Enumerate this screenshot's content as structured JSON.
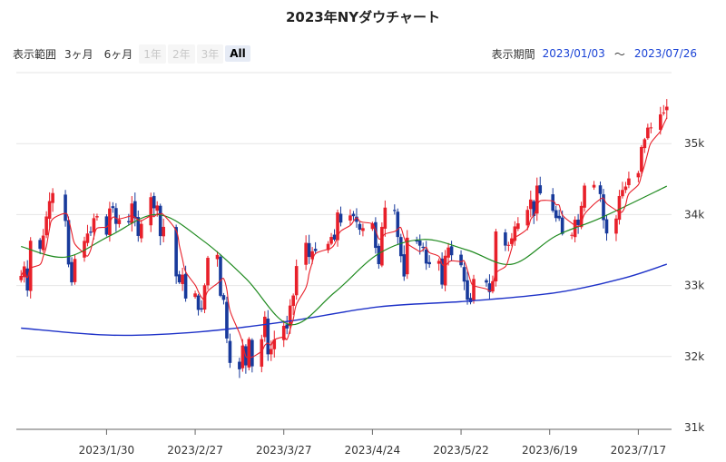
{
  "title": "2023年NYダウチャート",
  "range_selector": {
    "label": "表示範囲",
    "buttons": [
      {
        "label": "3ヶ月",
        "state": "enabled"
      },
      {
        "label": "6ヶ月",
        "state": "enabled"
      },
      {
        "label": "1年",
        "state": "disabled"
      },
      {
        "label": "2年",
        "state": "disabled"
      },
      {
        "label": "3年",
        "state": "disabled"
      },
      {
        "label": "All",
        "state": "active"
      }
    ]
  },
  "period": {
    "label": "表示期間",
    "from": "2023/01/03",
    "separator": "〜",
    "to": "2023/07/26"
  },
  "colors": {
    "up": "#e8202a",
    "down": "#183a9b",
    "ma_short": "#e8202a",
    "ma_mid": "#1f8a1f",
    "ma_long": "#1e32c8",
    "grid": "#e6e6e6"
  },
  "chart_data": {
    "type": "candlestick",
    "x_start": "2023-01-03",
    "x_end": "2023-07-26",
    "xticks": [
      {
        "date": "2023-01-30",
        "label": "2023/1/30"
      },
      {
        "date": "2023-02-27",
        "label": "2023/2/27"
      },
      {
        "date": "2023-03-27",
        "label": "2023/3/27"
      },
      {
        "date": "2023-04-24",
        "label": "2023/4/24"
      },
      {
        "date": "2023-05-22",
        "label": "2023/5/22"
      },
      {
        "date": "2023-06-19",
        "label": "2023/6/19"
      },
      {
        "date": "2023-07-17",
        "label": "2023/7/17"
      }
    ],
    "yticks": [
      {
        "value": 31000,
        "label": "31k"
      },
      {
        "value": 32000,
        "label": "32k"
      },
      {
        "value": 33000,
        "label": "33k"
      },
      {
        "value": 34000,
        "label": "34k"
      },
      {
        "value": 35000,
        "label": "35k"
      }
    ],
    "ylim": [
      31000,
      36000
    ],
    "closes": [
      [
        "2023-01-03",
        33136
      ],
      [
        "2023-01-04",
        33270
      ],
      [
        "2023-01-05",
        32930
      ],
      [
        "2023-01-06",
        33631
      ],
      [
        "2023-01-09",
        33517
      ],
      [
        "2023-01-10",
        33704
      ],
      [
        "2023-01-11",
        33973
      ],
      [
        "2023-01-12",
        34190
      ],
      [
        "2023-01-13",
        34303
      ],
      [
        "2023-01-17",
        33910
      ],
      [
        "2023-01-18",
        33297
      ],
      [
        "2023-01-19",
        33045
      ],
      [
        "2023-01-20",
        33375
      ],
      [
        "2023-01-23",
        33629
      ],
      [
        "2023-01-24",
        33733
      ],
      [
        "2023-01-25",
        33744
      ],
      [
        "2023-01-26",
        33949
      ],
      [
        "2023-01-27",
        33978
      ],
      [
        "2023-01-30",
        33717
      ],
      [
        "2023-01-31",
        34086
      ],
      [
        "2023-02-01",
        34092
      ],
      [
        "2023-02-02",
        33869
      ],
      [
        "2023-02-03",
        33926
      ],
      [
        "2023-02-06",
        33891
      ],
      [
        "2023-02-07",
        34156
      ],
      [
        "2023-02-08",
        33949
      ],
      [
        "2023-02-09",
        33699
      ],
      [
        "2023-02-10",
        33869
      ],
      [
        "2023-02-13",
        34245
      ],
      [
        "2023-02-14",
        34089
      ],
      [
        "2023-02-15",
        34128
      ],
      [
        "2023-02-16",
        33697
      ],
      [
        "2023-02-17",
        33827
      ],
      [
        "2023-02-21",
        33130
      ],
      [
        "2023-02-22",
        33045
      ],
      [
        "2023-02-23",
        33153
      ],
      [
        "2023-02-24",
        32817
      ],
      [
        "2023-02-27",
        32889
      ],
      [
        "2023-02-28",
        32657
      ],
      [
        "2023-03-01",
        32662
      ],
      [
        "2023-03-02",
        33004
      ],
      [
        "2023-03-03",
        33391
      ],
      [
        "2023-03-06",
        33432
      ],
      [
        "2023-03-07",
        32856
      ],
      [
        "2023-03-08",
        32798
      ],
      [
        "2023-03-09",
        32254
      ],
      [
        "2023-03-10",
        31910
      ],
      [
        "2023-03-13",
        31820
      ],
      [
        "2023-03-14",
        32155
      ],
      [
        "2023-03-15",
        31875
      ],
      [
        "2023-03-16",
        32247
      ],
      [
        "2023-03-17",
        31862
      ],
      [
        "2023-03-20",
        32245
      ],
      [
        "2023-03-21",
        32561
      ],
      [
        "2023-03-22",
        32031
      ],
      [
        "2023-03-23",
        32106
      ],
      [
        "2023-03-24",
        32238
      ],
      [
        "2023-03-27",
        32433
      ],
      [
        "2023-03-28",
        32395
      ],
      [
        "2023-03-29",
        32718
      ],
      [
        "2023-03-30",
        32860
      ],
      [
        "2023-03-31",
        33275
      ],
      [
        "2023-04-03",
        33602
      ],
      [
        "2023-04-04",
        33403
      ],
      [
        "2023-04-05",
        33483
      ],
      [
        "2023-04-06",
        33486
      ],
      [
        "2023-04-10",
        33587
      ],
      [
        "2023-04-11",
        33685
      ],
      [
        "2023-04-12",
        33647
      ],
      [
        "2023-04-13",
        34030
      ],
      [
        "2023-04-14",
        33887
      ],
      [
        "2023-04-17",
        33988
      ],
      [
        "2023-04-18",
        33977
      ],
      [
        "2023-04-19",
        33897
      ],
      [
        "2023-04-20",
        33787
      ],
      [
        "2023-04-21",
        33809
      ],
      [
        "2023-04-24",
        33876
      ],
      [
        "2023-04-25",
        33531
      ],
      [
        "2023-04-26",
        33302
      ],
      [
        "2023-04-27",
        33827
      ],
      [
        "2023-04-28",
        34098
      ],
      [
        "2023-05-01",
        34051
      ],
      [
        "2023-05-02",
        33684
      ],
      [
        "2023-05-03",
        33414
      ],
      [
        "2023-05-04",
        33128
      ],
      [
        "2023-05-05",
        33674
      ],
      [
        "2023-05-08",
        33619
      ],
      [
        "2023-05-09",
        33562
      ],
      [
        "2023-05-10",
        33531
      ],
      [
        "2023-05-11",
        33310
      ],
      [
        "2023-05-12",
        33301
      ],
      [
        "2023-05-15",
        33348
      ],
      [
        "2023-05-16",
        33013
      ],
      [
        "2023-05-17",
        33420
      ],
      [
        "2023-05-18",
        33536
      ],
      [
        "2023-05-19",
        33427
      ],
      [
        "2023-05-22",
        33286
      ],
      [
        "2023-05-23",
        33056
      ],
      [
        "2023-05-24",
        32800
      ],
      [
        "2023-05-25",
        32765
      ],
      [
        "2023-05-26",
        33093
      ],
      [
        "2023-05-30",
        33042
      ],
      [
        "2023-05-31",
        32908
      ],
      [
        "2023-06-01",
        33061
      ],
      [
        "2023-06-02",
        33762
      ],
      [
        "2023-06-05",
        33563
      ],
      [
        "2023-06-06",
        33573
      ],
      [
        "2023-06-07",
        33665
      ],
      [
        "2023-06-08",
        33833
      ],
      [
        "2023-06-09",
        33876
      ],
      [
        "2023-06-12",
        34066
      ],
      [
        "2023-06-13",
        34212
      ],
      [
        "2023-06-14",
        33979
      ],
      [
        "2023-06-15",
        34408
      ],
      [
        "2023-06-16",
        34299
      ],
      [
        "2023-06-20",
        34053
      ],
      [
        "2023-06-21",
        33951
      ],
      [
        "2023-06-22",
        33946
      ],
      [
        "2023-06-23",
        33727
      ],
      [
        "2023-06-26",
        33714
      ],
      [
        "2023-06-27",
        33927
      ],
      [
        "2023-06-28",
        33852
      ],
      [
        "2023-06-29",
        34122
      ],
      [
        "2023-06-30",
        34408
      ],
      [
        "2023-07-03",
        34418
      ],
      [
        "2023-07-05",
        34288
      ],
      [
        "2023-07-06",
        33922
      ],
      [
        "2023-07-07",
        33734
      ],
      [
        "2023-07-10",
        33944
      ],
      [
        "2023-07-11",
        34261
      ],
      [
        "2023-07-12",
        34347
      ],
      [
        "2023-07-13",
        34395
      ],
      [
        "2023-07-14",
        34509
      ],
      [
        "2023-07-17",
        34585
      ],
      [
        "2023-07-18",
        34952
      ],
      [
        "2023-07-19",
        35061
      ],
      [
        "2023-07-20",
        35225
      ],
      [
        "2023-07-21",
        35228
      ],
      [
        "2023-07-24",
        35411
      ],
      [
        "2023-07-25",
        35438
      ],
      [
        "2023-07-26",
        35520
      ]
    ],
    "ma_mid": [
      [
        "2023-01-03",
        33550
      ],
      [
        "2023-01-17",
        33400
      ],
      [
        "2023-01-31",
        33700
      ],
      [
        "2023-02-15",
        34000
      ],
      [
        "2023-03-01",
        33650
      ],
      [
        "2023-03-15",
        33100
      ],
      [
        "2023-03-29",
        32450
      ],
      [
        "2023-04-12",
        32900
      ],
      [
        "2023-04-26",
        33450
      ],
      [
        "2023-05-10",
        33650
      ],
      [
        "2023-05-24",
        33500
      ],
      [
        "2023-06-07",
        33300
      ],
      [
        "2023-06-21",
        33700
      ],
      [
        "2023-07-05",
        33950
      ],
      [
        "2023-07-26",
        34400
      ]
    ],
    "ma_long": [
      [
        "2023-01-03",
        32400
      ],
      [
        "2023-02-01",
        32300
      ],
      [
        "2023-03-01",
        32350
      ],
      [
        "2023-03-29",
        32500
      ],
      [
        "2023-04-26",
        32700
      ],
      [
        "2023-05-24",
        32780
      ],
      [
        "2023-06-21",
        32900
      ],
      [
        "2023-07-12",
        33100
      ],
      [
        "2023-07-26",
        33300
      ]
    ]
  }
}
